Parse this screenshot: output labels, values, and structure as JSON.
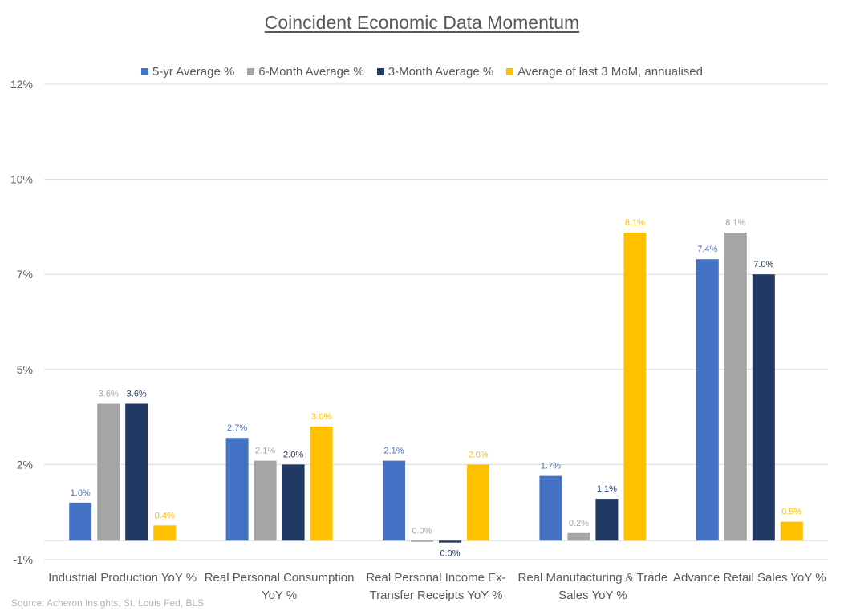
{
  "chart_data": {
    "type": "bar",
    "title": "Coincident Economic Data Momentum",
    "categories": [
      [
        "Industrial Production YoY %"
      ],
      [
        "Real Personal Consumption",
        "YoY %"
      ],
      [
        "Real Personal Income Ex-",
        "Transfer Receipts YoY %"
      ],
      [
        "Real Manufacturing & Trade",
        "Sales YoY %"
      ],
      [
        "Advance Retail Sales YoY %"
      ]
    ],
    "series": [
      {
        "name": "5-yr Average %",
        "color": "#4472C4",
        "values": [
          1.0,
          2.7,
          2.1,
          1.7,
          7.4
        ],
        "labels": [
          "1.0%",
          "2.7%",
          "2.1%",
          "1.7%",
          "7.4%"
        ]
      },
      {
        "name": "6-Month Average %",
        "color": "#A5A5A5",
        "values": [
          3.6,
          2.1,
          0.0,
          0.2,
          8.1
        ],
        "labels": [
          "3.6%",
          "2.1%",
          "0.0%",
          "0.2%",
          "8.1%"
        ]
      },
      {
        "name": "3-Month Average %",
        "color": "#203864",
        "values": [
          3.6,
          2.0,
          -0.05,
          1.1,
          7.0
        ],
        "labels": [
          "3.6%",
          "2.0%",
          "0.0%",
          "1.1%",
          "7.0%"
        ]
      },
      {
        "name": "Average of last 3 MoM, annualised",
        "color": "#FFC000",
        "values": [
          0.4,
          3.0,
          2.0,
          8.1,
          0.5
        ],
        "labels": [
          "0.4%",
          "3.0%",
          "2.0%",
          "8.1%",
          "0.5%"
        ]
      }
    ],
    "yticks": [
      {
        "value": -0.5,
        "label": "-1%"
      },
      {
        "value": 2.0,
        "label": "2%"
      },
      {
        "value": 4.5,
        "label": "5%"
      },
      {
        "value": 7.0,
        "label": "7%"
      },
      {
        "value": 9.5,
        "label": "10%"
      },
      {
        "value": 12.0,
        "label": "12%"
      }
    ],
    "ylim": [
      -0.5,
      12.0
    ],
    "xlabel": "",
    "ylabel": "",
    "grid": true,
    "legend_position": "top"
  },
  "source": "Source: Acheron Insights, St. Louis Fed, BLS"
}
